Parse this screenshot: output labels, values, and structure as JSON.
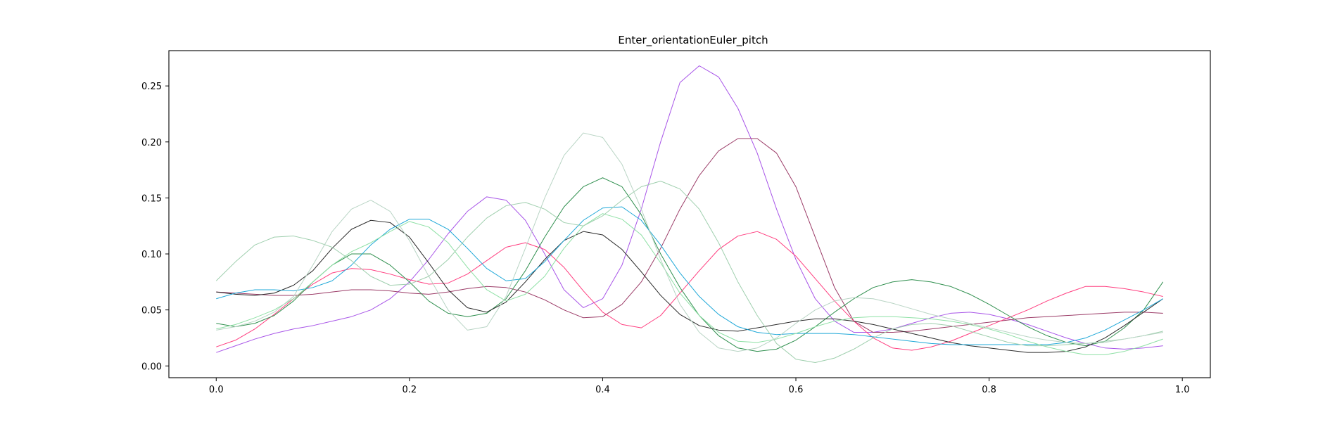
{
  "chart_data": {
    "type": "line",
    "title": "Enter_orientationEuler_pitch",
    "xlabel": "",
    "ylabel": "",
    "xlim": [
      -0.049,
      1.029
    ],
    "ylim": [
      -0.0105,
      0.2815
    ],
    "xticks": [
      0.0,
      0.2,
      0.4,
      0.6,
      0.8,
      1.0
    ],
    "xtick_labels": [
      "0.0",
      "0.2",
      "0.4",
      "0.6",
      "0.8",
      "1.0"
    ],
    "yticks": [
      0.0,
      0.05,
      0.1,
      0.15,
      0.2,
      0.25
    ],
    "ytick_labels": [
      "0.00",
      "0.05",
      "0.10",
      "0.15",
      "0.20",
      "0.25"
    ],
    "grid": false,
    "legend": "none",
    "x": [
      0.0,
      0.02,
      0.04,
      0.06,
      0.08,
      0.1,
      0.12,
      0.14,
      0.16,
      0.18,
      0.2,
      0.22,
      0.24,
      0.26,
      0.28,
      0.3,
      0.32,
      0.34,
      0.36,
      0.38,
      0.4,
      0.42,
      0.44,
      0.46,
      0.48,
      0.5,
      0.52,
      0.54,
      0.56,
      0.58,
      0.6,
      0.62,
      0.64,
      0.66,
      0.68,
      0.7,
      0.72,
      0.74,
      0.76,
      0.78,
      0.8,
      0.82,
      0.84,
      0.86,
      0.88,
      0.9,
      0.92,
      0.94,
      0.96,
      0.98
    ],
    "series": [
      {
        "color": "#a855e8",
        "values": [
          0.012,
          0.018,
          0.024,
          0.029,
          0.033,
          0.036,
          0.04,
          0.044,
          0.05,
          0.06,
          0.075,
          0.095,
          0.118,
          0.138,
          0.151,
          0.148,
          0.13,
          0.1,
          0.068,
          0.052,
          0.06,
          0.09,
          0.14,
          0.2,
          0.253,
          0.268,
          0.258,
          0.23,
          0.19,
          0.14,
          0.095,
          0.06,
          0.04,
          0.03,
          0.03,
          0.033,
          0.038,
          0.043,
          0.047,
          0.048,
          0.046,
          0.042,
          0.037,
          0.031,
          0.025,
          0.02,
          0.016,
          0.015,
          0.016,
          0.018
        ]
      },
      {
        "color": "#9b3b67",
        "values": [
          0.066,
          0.065,
          0.064,
          0.063,
          0.063,
          0.064,
          0.066,
          0.068,
          0.068,
          0.067,
          0.065,
          0.064,
          0.066,
          0.069,
          0.071,
          0.07,
          0.066,
          0.059,
          0.05,
          0.043,
          0.044,
          0.055,
          0.075,
          0.105,
          0.14,
          0.17,
          0.192,
          0.203,
          0.203,
          0.19,
          0.16,
          0.115,
          0.07,
          0.04,
          0.03,
          0.03,
          0.031,
          0.033,
          0.035,
          0.037,
          0.039,
          0.041,
          0.043,
          0.044,
          0.045,
          0.046,
          0.047,
          0.048,
          0.048,
          0.047
        ]
      },
      {
        "color": "#ff3d7f",
        "values": [
          0.017,
          0.023,
          0.033,
          0.046,
          0.06,
          0.073,
          0.083,
          0.087,
          0.086,
          0.082,
          0.077,
          0.073,
          0.074,
          0.082,
          0.094,
          0.106,
          0.11,
          0.104,
          0.088,
          0.067,
          0.048,
          0.037,
          0.034,
          0.045,
          0.065,
          0.085,
          0.104,
          0.116,
          0.12,
          0.113,
          0.098,
          0.078,
          0.058,
          0.04,
          0.025,
          0.016,
          0.014,
          0.017,
          0.022,
          0.029,
          0.036,
          0.043,
          0.05,
          0.058,
          0.065,
          0.071,
          0.071,
          0.069,
          0.066,
          0.062
        ]
      },
      {
        "color": "#2f8f4e",
        "values": [
          0.038,
          0.035,
          0.038,
          0.045,
          0.058,
          0.075,
          0.09,
          0.1,
          0.1,
          0.09,
          0.075,
          0.058,
          0.047,
          0.044,
          0.047,
          0.06,
          0.085,
          0.115,
          0.142,
          0.16,
          0.168,
          0.16,
          0.135,
          0.1,
          0.07,
          0.045,
          0.027,
          0.016,
          0.013,
          0.015,
          0.023,
          0.035,
          0.048,
          0.06,
          0.07,
          0.075,
          0.077,
          0.075,
          0.071,
          0.064,
          0.055,
          0.045,
          0.035,
          0.027,
          0.021,
          0.018,
          0.022,
          0.034,
          0.05,
          0.075
        ]
      },
      {
        "color": "#2a2a2a",
        "values": [
          0.066,
          0.064,
          0.063,
          0.065,
          0.072,
          0.085,
          0.105,
          0.122,
          0.13,
          0.128,
          0.115,
          0.092,
          0.068,
          0.052,
          0.048,
          0.057,
          0.075,
          0.095,
          0.112,
          0.12,
          0.117,
          0.104,
          0.084,
          0.063,
          0.046,
          0.036,
          0.032,
          0.031,
          0.034,
          0.037,
          0.04,
          0.042,
          0.042,
          0.04,
          0.037,
          0.033,
          0.029,
          0.025,
          0.021,
          0.018,
          0.016,
          0.014,
          0.012,
          0.012,
          0.013,
          0.017,
          0.025,
          0.036,
          0.048,
          0.06
        ]
      },
      {
        "color": "#1fa8d8",
        "values": [
          0.06,
          0.065,
          0.068,
          0.068,
          0.067,
          0.07,
          0.076,
          0.09,
          0.108,
          0.122,
          0.131,
          0.131,
          0.122,
          0.105,
          0.087,
          0.076,
          0.078,
          0.093,
          0.112,
          0.13,
          0.141,
          0.142,
          0.13,
          0.108,
          0.083,
          0.062,
          0.046,
          0.035,
          0.03,
          0.028,
          0.029,
          0.029,
          0.029,
          0.028,
          0.026,
          0.024,
          0.022,
          0.02,
          0.019,
          0.019,
          0.019,
          0.019,
          0.019,
          0.019,
          0.021,
          0.025,
          0.032,
          0.041,
          0.05,
          0.06
        ]
      },
      {
        "color": "#8ee0a5",
        "values": [
          0.033,
          0.037,
          0.043,
          0.05,
          0.06,
          0.075,
          0.09,
          0.102,
          0.11,
          0.12,
          0.129,
          0.124,
          0.11,
          0.088,
          0.068,
          0.058,
          0.064,
          0.08,
          0.105,
          0.125,
          0.136,
          0.131,
          0.117,
          0.092,
          0.065,
          0.045,
          0.03,
          0.022,
          0.021,
          0.024,
          0.029,
          0.035,
          0.04,
          0.043,
          0.044,
          0.044,
          0.043,
          0.042,
          0.04,
          0.037,
          0.033,
          0.028,
          0.022,
          0.017,
          0.013,
          0.01,
          0.01,
          0.013,
          0.018,
          0.024
        ]
      },
      {
        "color": "#9fcfae",
        "values": [
          0.076,
          0.093,
          0.108,
          0.115,
          0.116,
          0.112,
          0.106,
          0.094,
          0.08,
          0.072,
          0.073,
          0.08,
          0.095,
          0.115,
          0.132,
          0.143,
          0.146,
          0.14,
          0.128,
          0.125,
          0.134,
          0.148,
          0.16,
          0.165,
          0.158,
          0.14,
          0.11,
          0.075,
          0.045,
          0.02,
          0.006,
          0.003,
          0.007,
          0.015,
          0.025,
          0.033,
          0.037,
          0.038,
          0.036,
          0.031,
          0.026,
          0.021,
          0.018,
          0.018,
          0.019,
          0.02,
          0.022,
          0.024,
          0.027,
          0.031
        ]
      },
      {
        "color": "#b8d4c4",
        "values": [
          0.032,
          0.035,
          0.04,
          0.048,
          0.062,
          0.09,
          0.12,
          0.14,
          0.148,
          0.138,
          0.112,
          0.08,
          0.05,
          0.032,
          0.035,
          0.062,
          0.105,
          0.15,
          0.188,
          0.208,
          0.204,
          0.18,
          0.14,
          0.095,
          0.055,
          0.03,
          0.016,
          0.013,
          0.016,
          0.025,
          0.038,
          0.05,
          0.058,
          0.061,
          0.06,
          0.056,
          0.051,
          0.046,
          0.042,
          0.038,
          0.034,
          0.03,
          0.026,
          0.023,
          0.021,
          0.02,
          0.021,
          0.024,
          0.027,
          0.03
        ]
      }
    ]
  }
}
